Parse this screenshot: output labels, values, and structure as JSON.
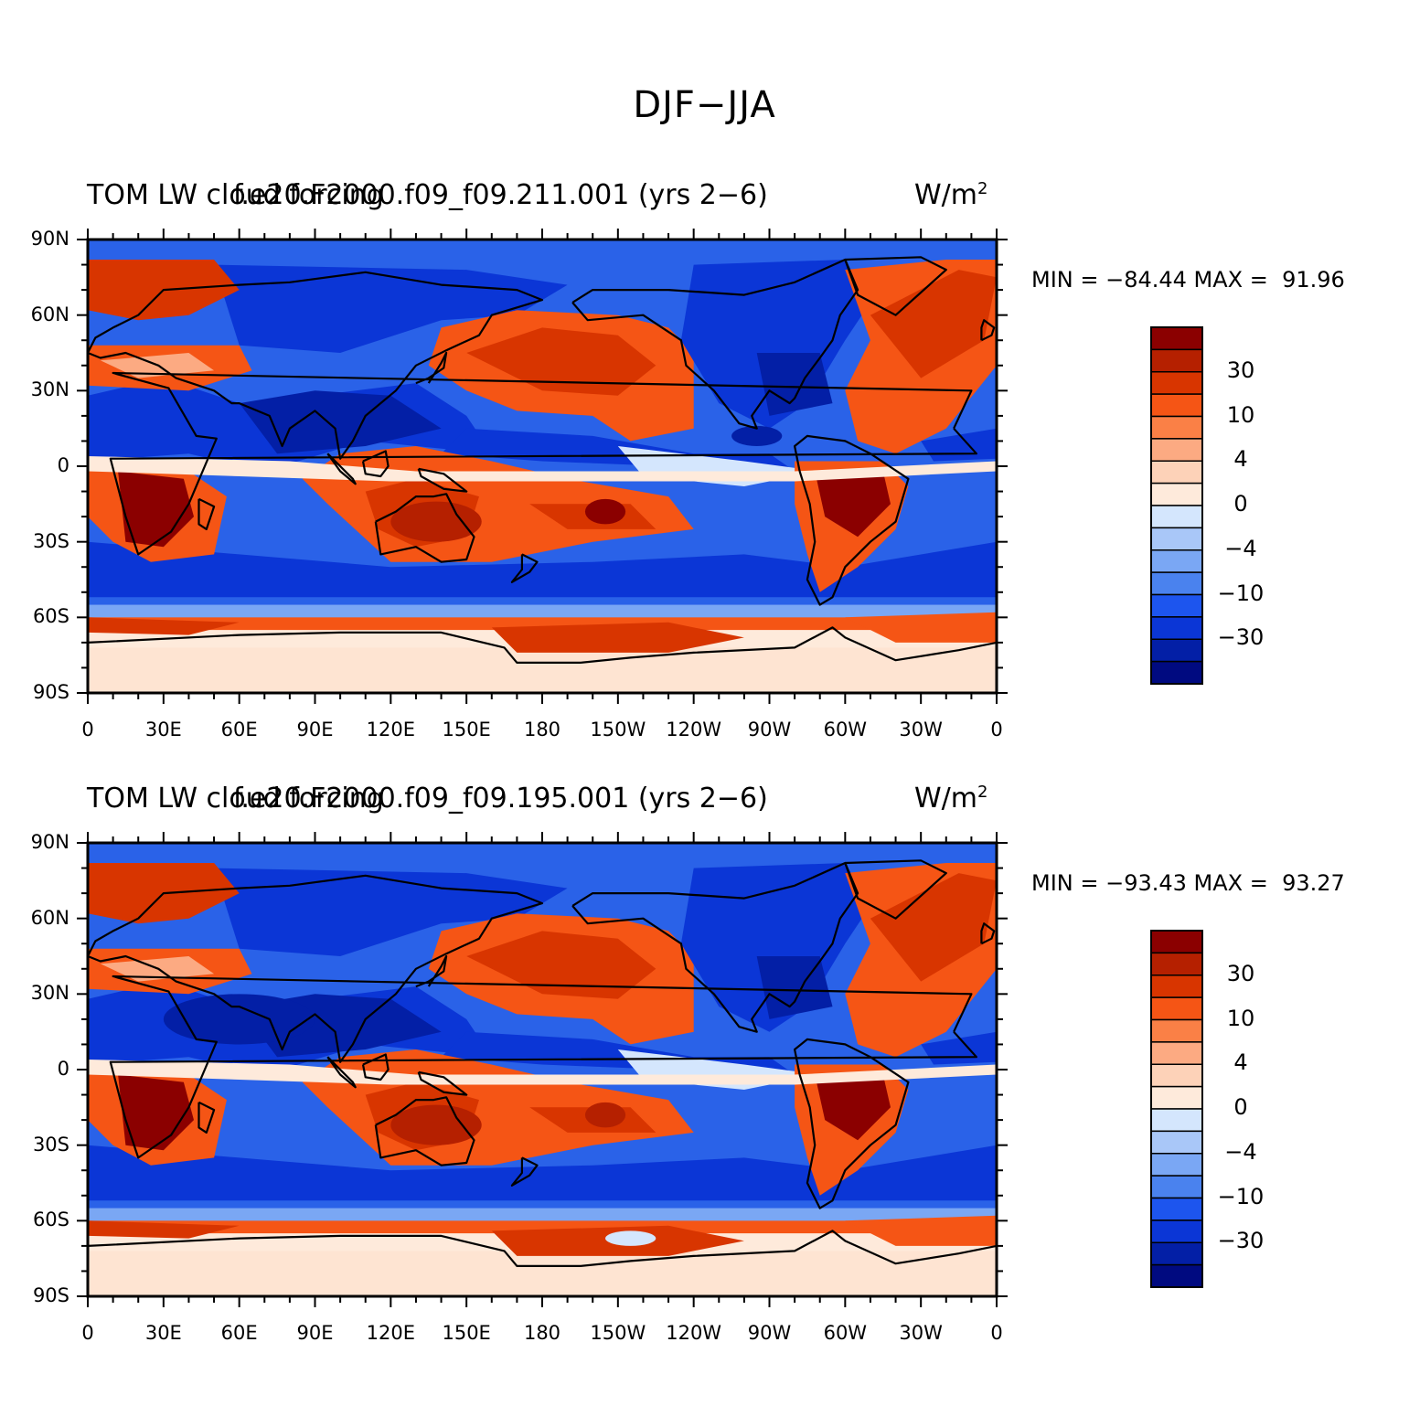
{
  "title": "DJF−JJA",
  "panels": [
    {
      "title_left": "TOM LW cloud forcing",
      "title_center": "f.e20.F2000.f09_f09.211.001 (yrs 2−6)",
      "units": "W/m",
      "units_sup": "2",
      "min_max": "MIN = −84.44 MAX =  91.96"
    },
    {
      "title_left": "TOM LW cloud forcing",
      "title_center": "f.e20.F2000.f09_f09.195.001 (yrs 2−6)",
      "units": "W/m",
      "units_sup": "2",
      "min_max": "MIN = −93.43 MAX =  93.27"
    }
  ],
  "lat_labels": [
    "90N",
    "60N",
    "30N",
    "0",
    "30S",
    "60S",
    "90S"
  ],
  "lon_labels": [
    "0",
    "30E",
    "60E",
    "90E",
    "120E",
    "150E",
    "180",
    "150W",
    "120W",
    "90W",
    "60W",
    "30W",
    "0"
  ],
  "colorbar": {
    "colors": [
      "#8b0000",
      "#b52000",
      "#d83500",
      "#f55515",
      "#fa8046",
      "#fcaa82",
      "#fdd2b8",
      "#feeadb",
      "#d4e6fd",
      "#a9c7f8",
      "#7aa7f4",
      "#4a82ee",
      "#1d55ee",
      "#0b36d6",
      "#031fa6",
      "#000a80"
    ],
    "labels": [
      "30",
      "10",
      "4",
      "0",
      "−4",
      "−10",
      "−30"
    ]
  },
  "map_colors": {
    "ocean_base": "#2a62e8",
    "deep_blue": "#0b36d6",
    "darkest_blue": "#031fa6",
    "light_blue": "#7aa7f4",
    "pale_blue": "#d4e6fd",
    "cream": "#feeadb",
    "peach": "#fcaa82",
    "orange": "#f55515",
    "red_orange": "#d83500",
    "red": "#b52000",
    "dark_red": "#8b0000"
  }
}
